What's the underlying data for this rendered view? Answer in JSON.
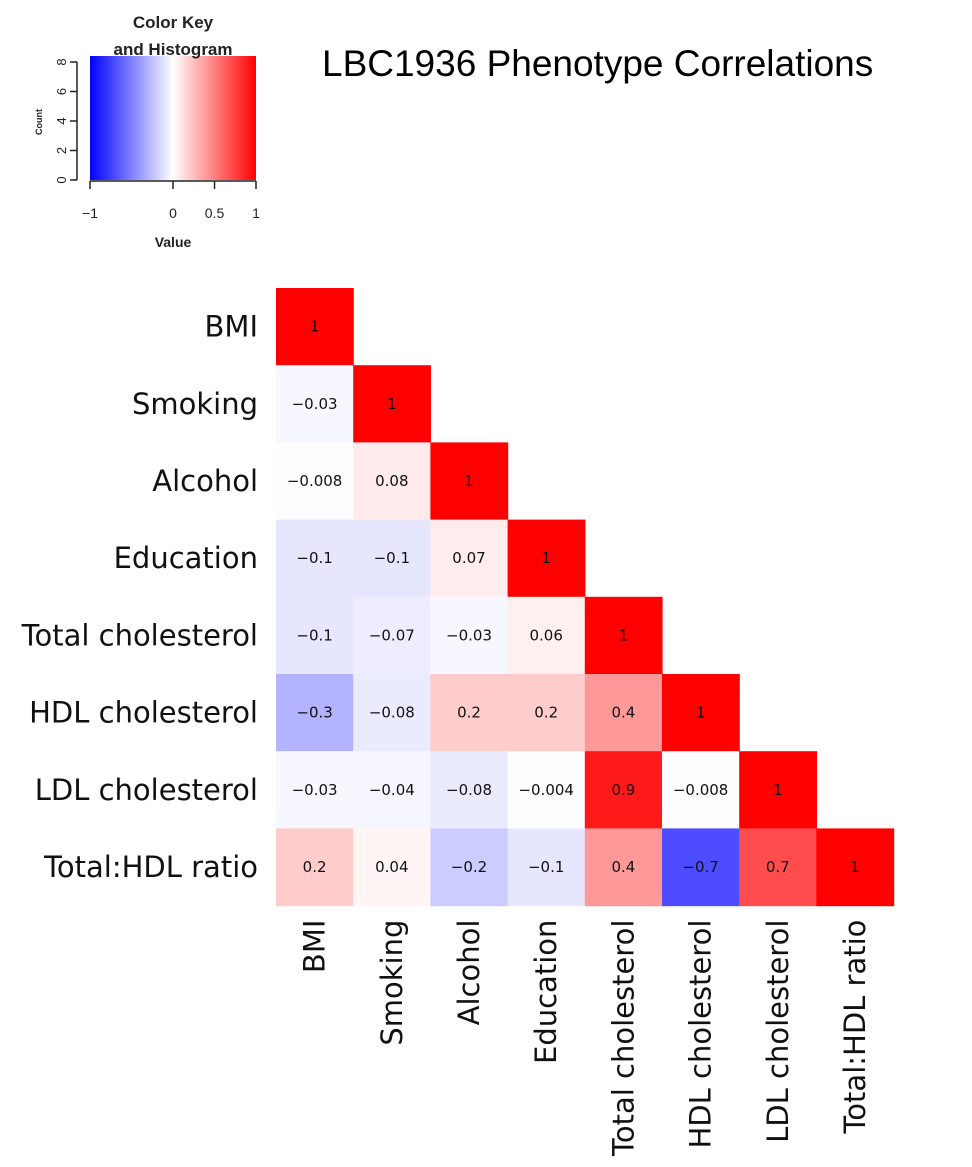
{
  "chart_data": {
    "type": "heatmap",
    "title": "LBC1936 Phenotype Correlations",
    "variables": [
      "BMI",
      "Smoking",
      "Alcohol",
      "Education",
      "Total cholesterol",
      "HDL cholesterol",
      "LDL cholesterol",
      "Total:HDL ratio"
    ],
    "matrix_lower": [
      [
        "1"
      ],
      [
        "−0.03",
        "1"
      ],
      [
        "−0.008",
        "0.08",
        "1"
      ],
      [
        "−0.1",
        "−0.1",
        "0.07",
        "1"
      ],
      [
        "−0.1",
        "−0.07",
        "−0.03",
        "0.06",
        "1"
      ],
      [
        "−0.3",
        "−0.08",
        "0.2",
        "0.2",
        "0.4",
        "1"
      ],
      [
        "−0.03",
        "−0.04",
        "−0.08",
        "−0.004",
        "0.9",
        "−0.008",
        "1"
      ],
      [
        "0.2",
        "0.04",
        "−0.2",
        "−0.1",
        "0.4",
        "−0.7",
        "0.7",
        "1"
      ]
    ],
    "color_scale": {
      "min": -1,
      "max": 1,
      "low_color": "#0000ff",
      "mid_color": "#ffffff",
      "high_color": "#ff0000"
    },
    "color_key": {
      "title_line1": "Color Key",
      "title_line2": "and Histogram",
      "x_label": "Value",
      "y_label": "Count",
      "x_ticks": [
        "−1",
        "0",
        "0.5",
        "1"
      ],
      "y_ticks": [
        "0",
        "2",
        "4",
        "6",
        "8"
      ]
    }
  }
}
